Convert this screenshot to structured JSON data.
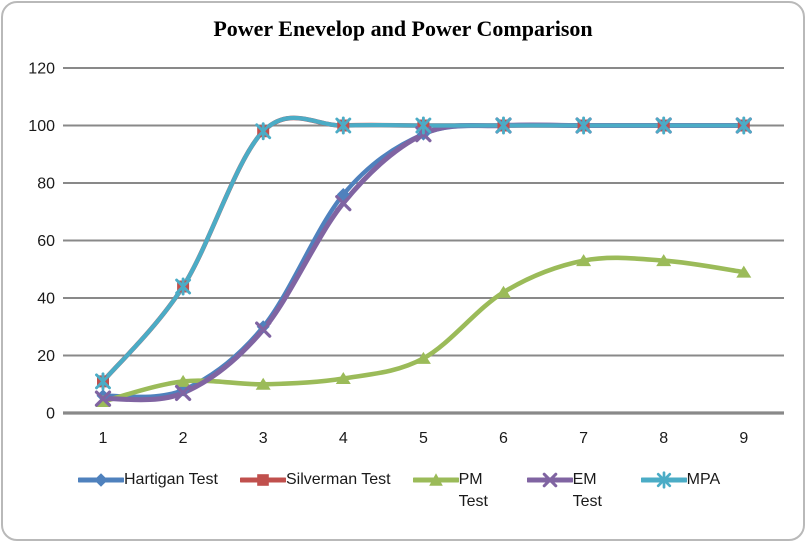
{
  "title": "Power Enevelop and Power Comparison",
  "chart_data": {
    "type": "line",
    "smooth": true,
    "x": [
      1,
      2,
      3,
      4,
      5,
      6,
      7,
      8,
      9
    ],
    "series": [
      {
        "name": "Hartigan Test",
        "marker": "diamond",
        "color": "#4F81BD",
        "legend_wrap": false,
        "values": [
          6,
          8,
          30,
          76,
          97,
          100,
          100,
          100,
          100
        ]
      },
      {
        "name": "Silverman Test",
        "marker": "square",
        "color": "#C0504D",
        "legend_wrap": false,
        "values": [
          11,
          44,
          98,
          100,
          100,
          100,
          100,
          100,
          100
        ]
      },
      {
        "name": "PM Test",
        "marker": "triangle",
        "color": "#9BBB59",
        "legend_wrap": true,
        "values": [
          4,
          11,
          10,
          12,
          19,
          42,
          53,
          53,
          49
        ]
      },
      {
        "name": "EM Test",
        "marker": "x",
        "color": "#8064A2",
        "legend_wrap": true,
        "values": [
          5,
          7,
          29,
          73,
          97,
          100,
          100,
          100,
          100
        ]
      },
      {
        "name": "MPA",
        "marker": "asterisk",
        "color": "#4BACC6",
        "legend_wrap": false,
        "values": [
          11,
          44,
          98,
          100,
          100,
          100,
          100,
          100,
          100
        ]
      }
    ],
    "title": "Power Enevelop and Power Comparison",
    "xlabel": "",
    "ylabel": "",
    "ylim": [
      0,
      120
    ],
    "yticks": [
      0,
      20,
      40,
      60,
      80,
      100,
      120
    ],
    "grid": true,
    "legend_position": "bottom",
    "gridline_color": "#898989",
    "tick_label_color": "#1a1a1a",
    "frame_border_color": "#b9b9b9"
  }
}
